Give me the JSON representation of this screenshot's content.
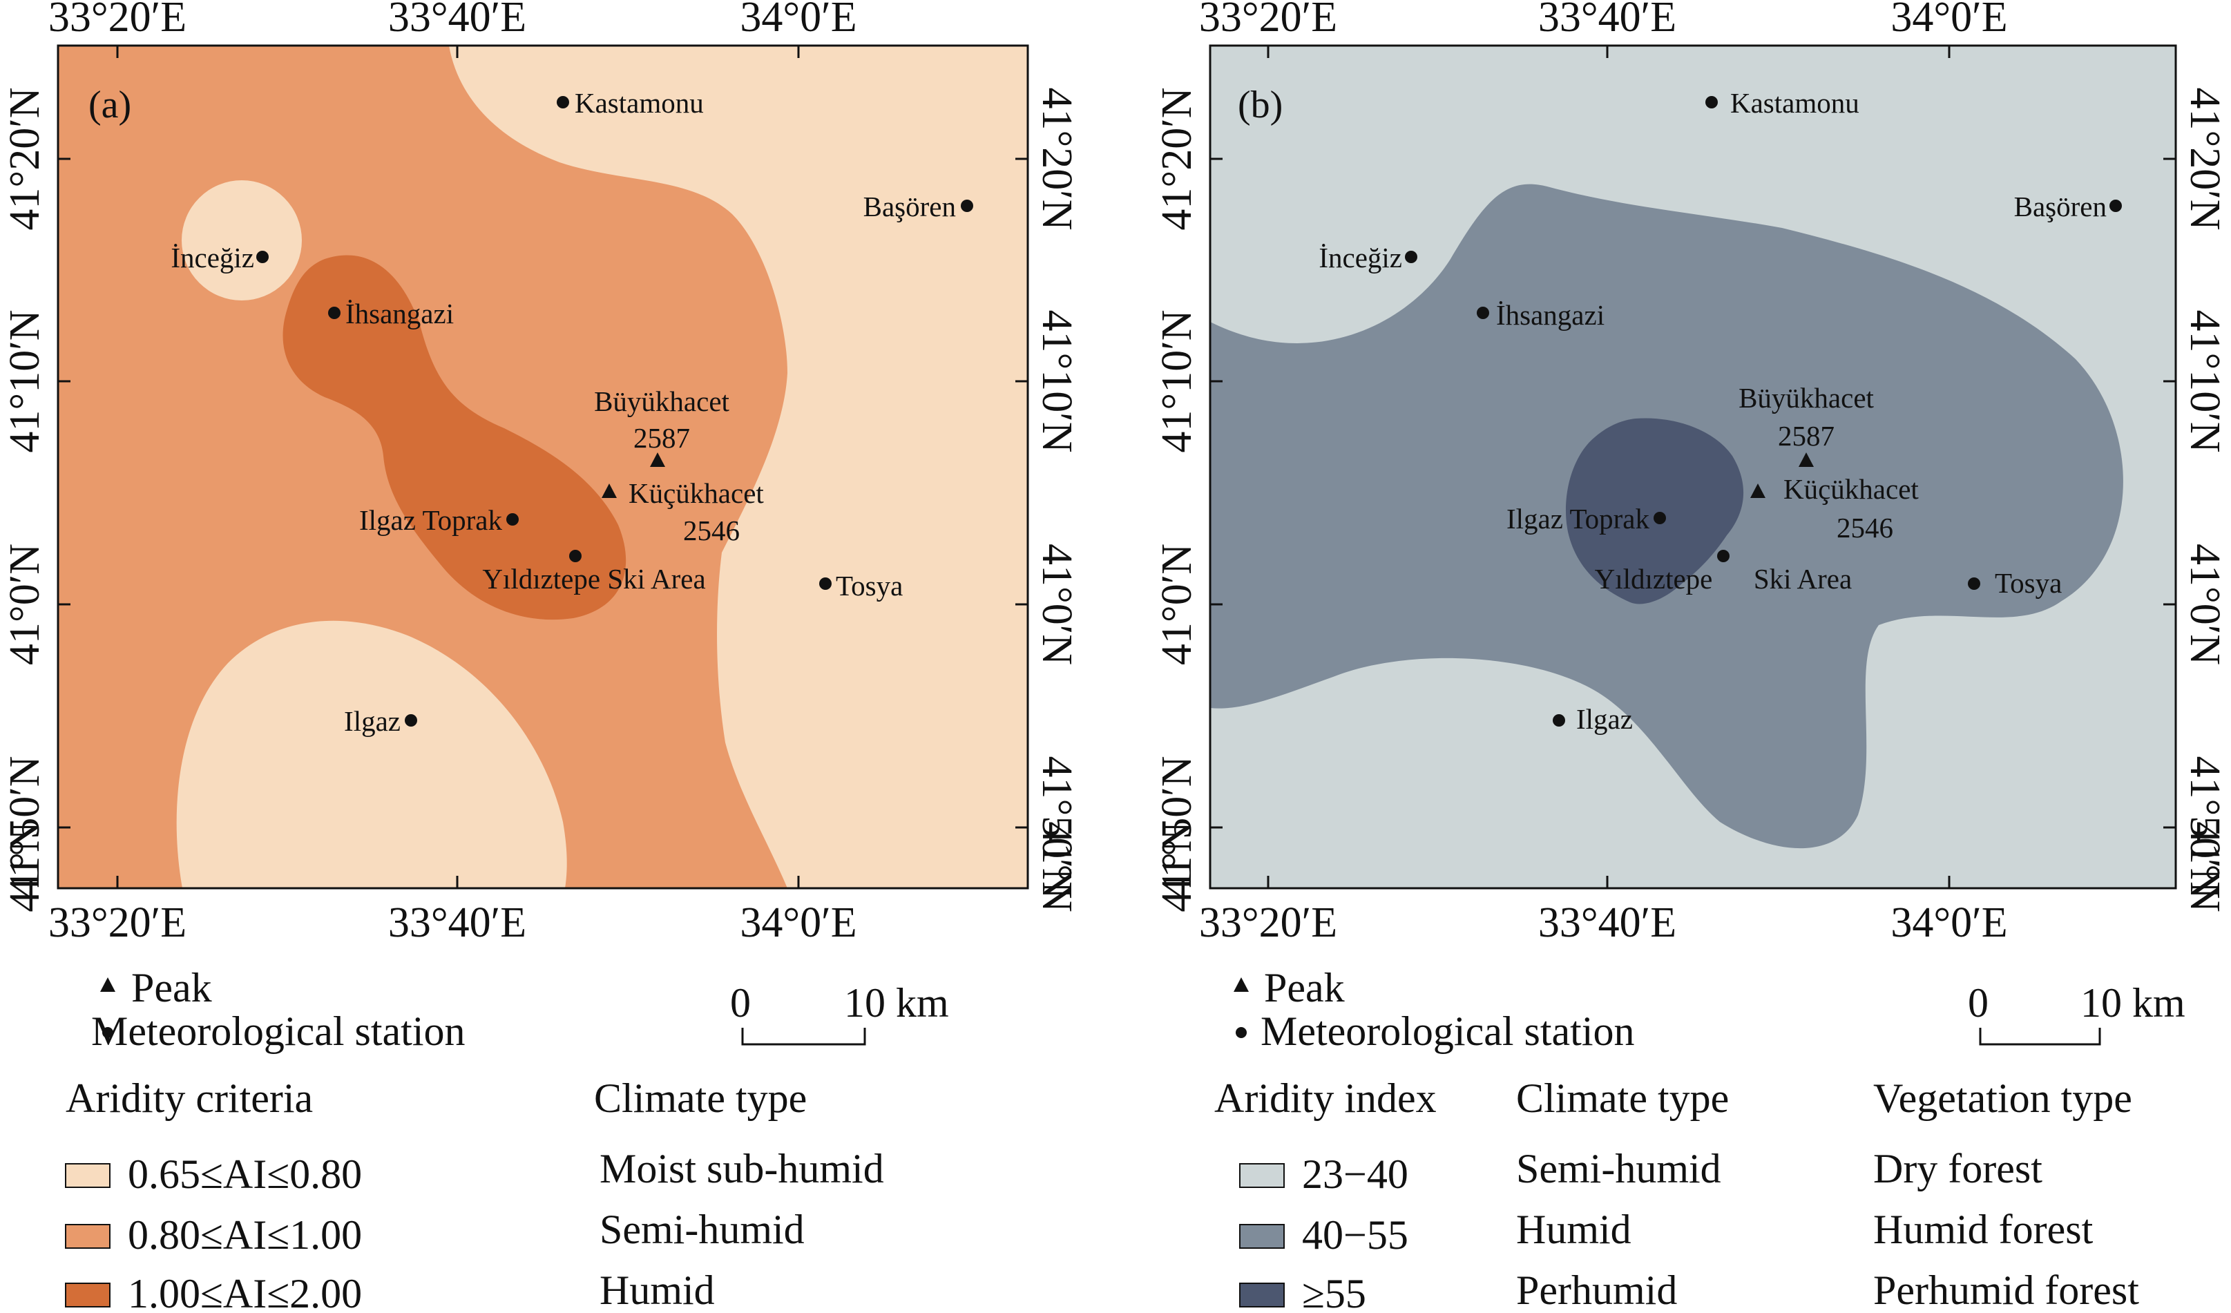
{
  "panels": [
    {
      "label": "(a)",
      "lon_ticks": [
        "33°20′E",
        "33°40′E",
        "34°0′E"
      ],
      "lat_ticks": [
        "41°20′N",
        "41°10′N",
        "41°0′N",
        "41°50′N"
      ],
      "lat_ticks_bottom_edge": "41°N",
      "places": {
        "kastamonu": "Kastamonu",
        "basoren": "Başören",
        "incegiz": "İnceğiz",
        "ihsangazi": "İhsangazi",
        "buyukhacet_name": "Büyükhacet",
        "buyukhacet_elev": "2587",
        "kucukhacet_name": "Küçükhacet",
        "kucukhacet_elev": "2546",
        "ilgaz_toprak": "Ilgaz Toprak",
        "yildiztepe": "Yıldıztepe Ski Area",
        "tosya": "Tosya",
        "ilgaz": "Ilgaz"
      },
      "colors": {
        "class1": "#f8dcbf",
        "class2": "#e99a6b",
        "class3": "#d46e37"
      }
    },
    {
      "label": "(b)",
      "lon_ticks": [
        "33°20′E",
        "33°40′E",
        "34°0′E"
      ],
      "lat_ticks": [
        "41°20′N",
        "41°10′N",
        "41°0′N",
        "41°50′N"
      ],
      "lat_ticks_bottom_edge": "41°N",
      "places": {
        "kastamonu": "Kastamonu",
        "basoren": "Başören",
        "incegiz": "İnceğiz",
        "ihsangazi": "İhsangazi",
        "buyukhacet_name": "Büyükhacet",
        "buyukhacet_elev": "2587",
        "kucukhacet_name": "Küçükhacet",
        "kucukhacet_elev": "2546",
        "ilgaz_toprak": "Ilgaz Toprak",
        "yildiztepe_a": "Yıldıztepe",
        "yildiztepe_b": "Ski Area",
        "tosya": "Tosya",
        "ilgaz": "Ilgaz"
      },
      "colors": {
        "class1": "#cdd6d7",
        "class2": "#7f8c9a",
        "class3": "#4c5770"
      }
    }
  ],
  "legend_a": {
    "peak": "Peak",
    "station": "Meteorological station",
    "scale_zero": "0",
    "scale_ten": "10 km",
    "head_criteria": "Aridity criteria",
    "head_climate": "Climate type",
    "rows": [
      {
        "range": "0.65≤AI≤0.80",
        "climate": "Moist sub-humid"
      },
      {
        "range": "0.80≤AI≤1.00",
        "climate": "Semi-humid"
      },
      {
        "range": "1.00≤AI≤2.00",
        "climate": "Humid"
      }
    ]
  },
  "legend_b": {
    "peak": "Peak",
    "station": "Meteorological station",
    "scale_zero": "0",
    "scale_ten": "10 km",
    "head_index": "Aridity index",
    "head_climate": "Climate type",
    "head_vegetation": "Vegetation type",
    "rows": [
      {
        "range": "23−40",
        "climate": "Semi-humid",
        "vegetation": "Dry forest"
      },
      {
        "range": "40−55",
        "climate": "Humid",
        "vegetation": "Humid forest"
      },
      {
        "range": "≥55",
        "climate": "Perhumid",
        "vegetation": "Perhumid forest"
      }
    ]
  }
}
